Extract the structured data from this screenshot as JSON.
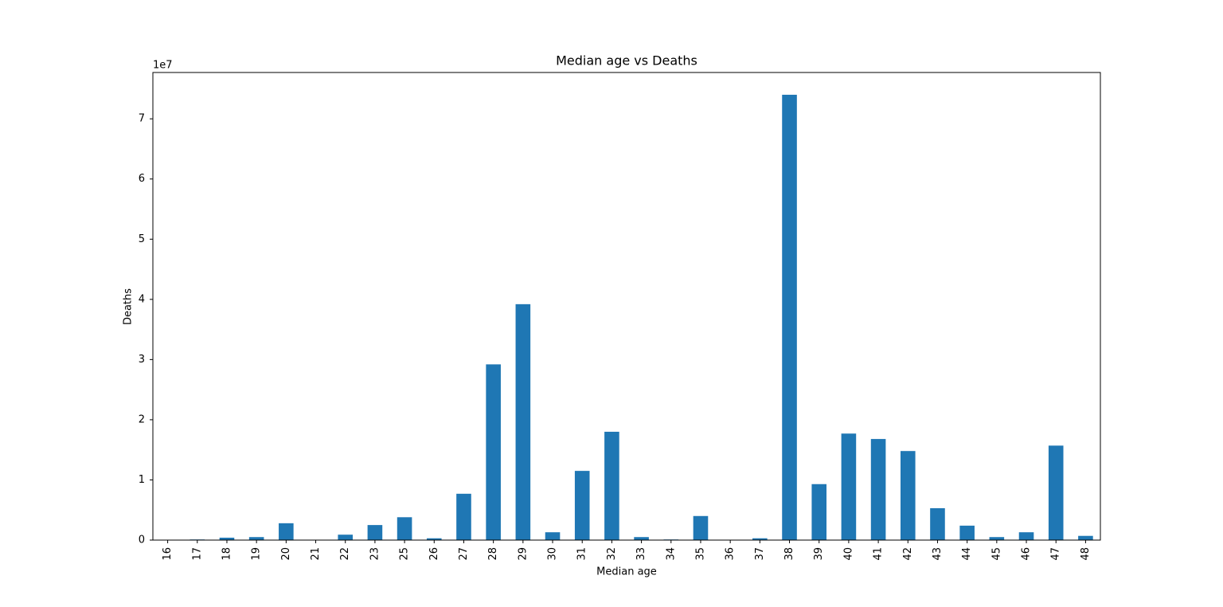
{
  "chart_data": {
    "type": "bar",
    "title": "Median age vs Deaths",
    "x_label": "Median age",
    "y_label": "Deaths",
    "y_offset_label": "1e7",
    "categories": [
      "16",
      "17",
      "18",
      "19",
      "20",
      "21",
      "22",
      "23",
      "25",
      "26",
      "27",
      "28",
      "29",
      "30",
      "31",
      "32",
      "33",
      "34",
      "35",
      "36",
      "37",
      "38",
      "39",
      "40",
      "41",
      "42",
      "43",
      "44",
      "45",
      "46",
      "47",
      "48"
    ],
    "values": [
      0.0,
      0.01,
      0.04,
      0.05,
      0.28,
      0.0,
      0.09,
      0.25,
      0.38,
      0.03,
      0.77,
      2.92,
      3.92,
      0.13,
      1.15,
      1.8,
      0.05,
      0.01,
      0.4,
      0.0,
      0.03,
      7.4,
      0.93,
      1.77,
      1.68,
      1.48,
      0.53,
      0.24,
      0.05,
      0.13,
      1.57,
      0.07
    ],
    "color": "#1f77b4",
    "ylim": [
      0,
      7.77
    ],
    "yticks": [
      0,
      1,
      2,
      3,
      4,
      5,
      6,
      7
    ],
    "grid": false
  }
}
